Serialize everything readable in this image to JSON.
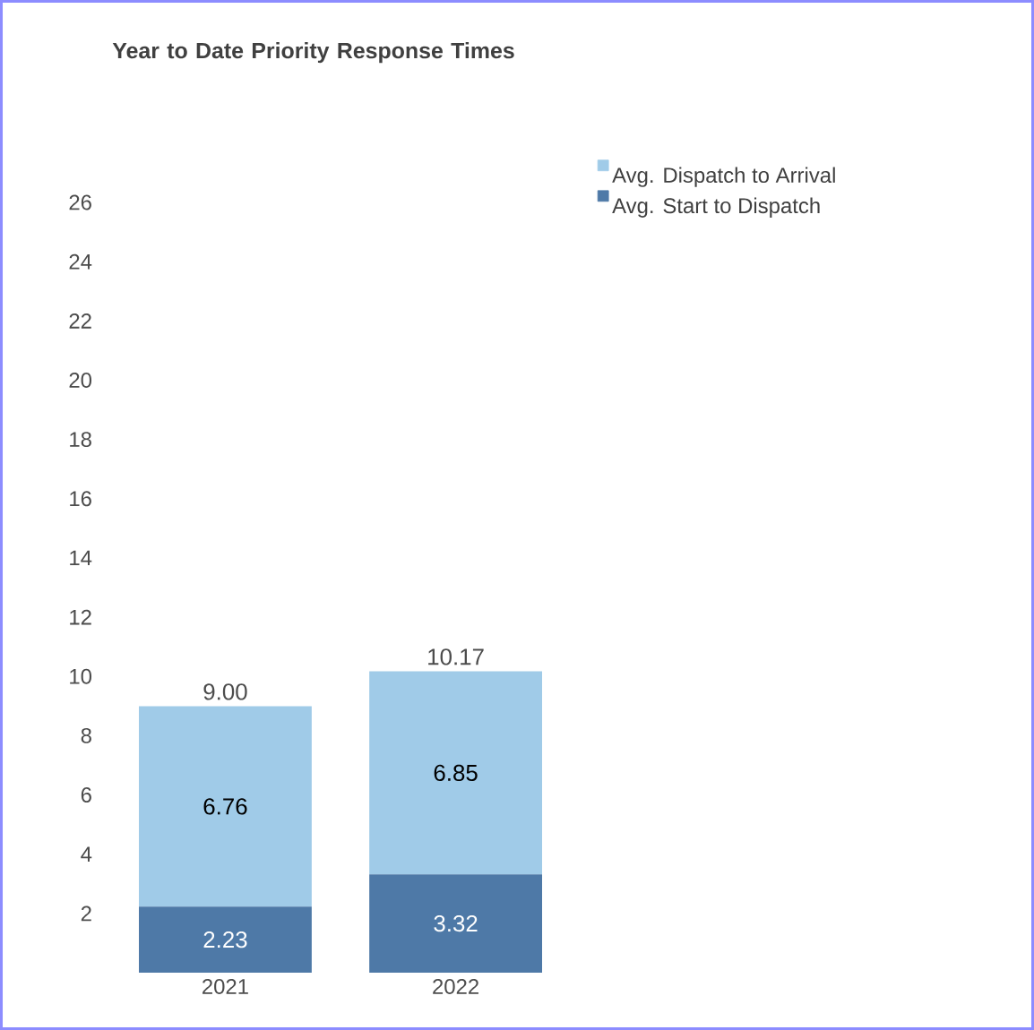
{
  "chart_data": {
    "type": "bar",
    "stacked": true,
    "title": "Year to Date Priority Response Times",
    "categories": [
      "2021",
      "2022"
    ],
    "series": [
      {
        "name": "Avg. Start to Dispatch",
        "color": "#4e79a7",
        "values": [
          2.23,
          3.32
        ]
      },
      {
        "name": "Avg. Dispatch to Arrival",
        "color": "#a0cbe8",
        "values": [
          6.76,
          6.85
        ]
      }
    ],
    "ylim": [
      0,
      26
    ],
    "yticks": [
      2,
      4,
      6,
      8,
      10,
      12,
      14,
      16,
      18,
      20,
      22,
      24,
      26
    ],
    "data_labels": true,
    "totals": [
      "9.00",
      "10.17"
    ],
    "legend": "top right",
    "grid": false
  }
}
